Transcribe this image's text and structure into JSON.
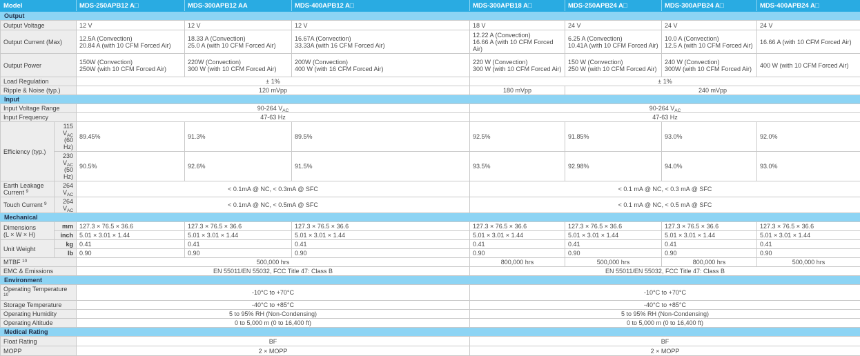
{
  "colors": {
    "header_bg": "#29ABE2",
    "section_bg": "#8DD4F4",
    "label_bg": "#EDEDED",
    "border": "#C9C9C9",
    "header_text": "#FFFFFF",
    "body_text": "#4A4A4A"
  },
  "table": {
    "columns": {
      "label": "Model",
      "models": [
        "MDS-250APB12 A□",
        "MDS-300APB12 AA",
        "MDS-400APB12 A□",
        "MDS-300APB18 A□",
        "MDS-250APB24 A□",
        "MDS-300APB24 A□",
        "MDS-400APB24 A□"
      ]
    },
    "rows": [
      {
        "kind": "section",
        "label": "Output"
      },
      {
        "kind": "row",
        "h": "h14",
        "label": "Output Voltage",
        "cells": [
          {
            "t": "12 V"
          },
          {
            "t": "12 V"
          },
          {
            "t": "12 V"
          },
          {
            "t": "18 V"
          },
          {
            "t": "24 V"
          },
          {
            "t": "24 V"
          },
          {
            "t": "24 V"
          }
        ]
      },
      {
        "kind": "row",
        "h": "h34",
        "label": "Output Current (Max)",
        "cells": [
          {
            "t": "12.5A (Convection)\n20.84 A (with 10 CFM Forced Air)"
          },
          {
            "t": "18.33 A (Convection)\n25.0 A (with 10 CFM Forced Air)"
          },
          {
            "t": "16.67A (Convection)\n33.33A (with 16 CFM Forced Air)"
          },
          {
            "t": "12.22 A (Convection)\n16.66 A (with 10 CFM Forced Air)"
          },
          {
            "t": "6.25 A (Convection)\n10.41A (with 10 CFM Forced Air)"
          },
          {
            "t": "10.0 A (Convection)\n12.5 A (with 10 CFM Forced Air)"
          },
          {
            "t": "16.66 A (with 10 CFM Forced Air)"
          }
        ]
      },
      {
        "kind": "row",
        "h": "h34",
        "label": "Output Power",
        "cells": [
          {
            "t": "150W (Convection)\n250W (with 10 CFM Forced Air)"
          },
          {
            "t": "220W (Convection)\n300 W (with 10 CFM Forced Air)"
          },
          {
            "t": "200W (Convection)\n400 W (with 16 CFM Forced Air)"
          },
          {
            "t": "220 W (Convection)\n300 W (with 10 CFM Forced Air)"
          },
          {
            "t": "150 W (Convection)\n250 W (with 10 CFM Forced Air)"
          },
          {
            "t": "240 W (Convection)\n300W (with 10 CFM Forced Air)"
          },
          {
            "t": "400 W (with 10 CFM Forced Air)"
          }
        ]
      },
      {
        "kind": "row",
        "h": "h13",
        "label": "Load Regulation",
        "cells": [
          {
            "t": "± 1%",
            "s": 3,
            "c": true
          },
          {
            "t": "± 1%",
            "s": 4,
            "c": true
          }
        ]
      },
      {
        "kind": "row",
        "h": "h13",
        "label": "Ripple & Noise (typ.)",
        "cells": [
          {
            "t": "120 mVpp",
            "s": 3,
            "c": true
          },
          {
            "t": "180 mVpp",
            "c": true
          },
          {
            "t": "240 mVpp",
            "s": 3,
            "c": true
          }
        ]
      },
      {
        "kind": "section",
        "label": "Input"
      },
      {
        "kind": "row",
        "h": "h13",
        "label": "Input Voltage Range",
        "cells": [
          {
            "t": "90-264 V_{AC}",
            "s": 3,
            "c": true
          },
          {
            "t": "90-264 V_{AC}",
            "s": 4,
            "c": true
          }
        ]
      },
      {
        "kind": "row",
        "h": "h13",
        "label": "Input Frequency",
        "cells": [
          {
            "t": "47-63 Hz",
            "s": 3,
            "c": true
          },
          {
            "t": "47-63 Hz",
            "s": 4,
            "c": true
          }
        ]
      },
      {
        "kind": "group",
        "label": "Efficiency (typ.)",
        "rows": [
          {
            "h": "h21",
            "sub": "115 V_{AC}\n(60 Hz)",
            "cells": [
              {
                "t": "89.45%"
              },
              {
                "t": "91.3%"
              },
              {
                "t": "89.5%"
              },
              {
                "t": "92.5%"
              },
              {
                "t": "91.85%"
              },
              {
                "t": "93.0%"
              },
              {
                "t": "92.0%"
              }
            ]
          },
          {
            "h": "h21",
            "sub": "230 V_{AC}\n(50 Hz)",
            "cells": [
              {
                "t": "90.5%"
              },
              {
                "t": "92.6%"
              },
              {
                "t": "91.5%"
              },
              {
                "t": "93.5%"
              },
              {
                "t": "92.98%"
              },
              {
                "t": "94.0%"
              },
              {
                "t": "93.0%"
              }
            ]
          }
        ]
      },
      {
        "kind": "row",
        "h": "h21",
        "label": "Earth Leakage Current ^{9}",
        "sub": "264 V_{AC}",
        "cells": [
          {
            "t": "< 0.1mA @ NC, < 0.3mA @ SFC",
            "s": 3,
            "c": true
          },
          {
            "t": "< 0.1 mA @ NC, < 0.3 mA @ SFC",
            "s": 4,
            "c": true
          }
        ]
      },
      {
        "kind": "row",
        "h": "h15",
        "label": "Touch Current ^{9}",
        "sub": "264 V_{AC}",
        "cells": [
          {
            "t": "< 0.1mA @ NC, < 0.5mA @ SFC",
            "s": 3,
            "c": true
          },
          {
            "t": "< 0.1 mA @ NC, < 0.5 mA @ SFC",
            "s": 4,
            "c": true
          }
        ]
      },
      {
        "kind": "section",
        "label": "Mechanical"
      },
      {
        "kind": "group",
        "label": "Dimensions\n(L × W × H)",
        "rows": [
          {
            "h": "h12",
            "sub": "mm",
            "b": true,
            "cells": [
              {
                "t": "127.3 × 76.5 × 36.6"
              },
              {
                "t": "127.3 × 76.5 × 36.6"
              },
              {
                "t": "127.3 × 76.5 × 36.6"
              },
              {
                "t": "127.3 × 76.5 × 36.6"
              },
              {
                "t": "127.3 × 76.5 × 36.6"
              },
              {
                "t": "127.3 × 76.5 × 36.6"
              },
              {
                "t": "127.3 × 76.5 × 36.6"
              }
            ]
          },
          {
            "h": "h12",
            "sub": "inch",
            "b": true,
            "cells": [
              {
                "t": "5.01 × 3.01 × 1.44"
              },
              {
                "t": "5.01 × 3.01 × 1.44"
              },
              {
                "t": "5.01 × 3.01 × 1.44"
              },
              {
                "t": "5.01 × 3.01 × 1.44"
              },
              {
                "t": "5.01 × 3.01 × 1.44"
              },
              {
                "t": "5.01 × 3.01 × 1.44"
              },
              {
                "t": "5.01 × 3.01 × 1.44"
              }
            ]
          }
        ]
      },
      {
        "kind": "group",
        "label": "Unit Weight",
        "rows": [
          {
            "h": "h12",
            "sub": "kg",
            "b": true,
            "cells": [
              {
                "t": "0.41"
              },
              {
                "t": "0.41"
              },
              {
                "t": "0.41"
              },
              {
                "t": "0.41"
              },
              {
                "t": "0.41"
              },
              {
                "t": "0.41"
              },
              {
                "t": "0.41"
              }
            ]
          },
          {
            "h": "h12",
            "sub": "lb",
            "b": true,
            "cells": [
              {
                "t": "0.90"
              },
              {
                "t": "0.90"
              },
              {
                "t": "0.90"
              },
              {
                "t": "0.90"
              },
              {
                "t": "0.90"
              },
              {
                "t": "0.90"
              },
              {
                "t": "0.90"
              }
            ]
          }
        ]
      },
      {
        "kind": "row",
        "h": "h12",
        "label": "MTBF ^{10}",
        "cells": [
          {
            "t": "500,000 hrs",
            "s": 3,
            "c": true
          },
          {
            "t": "800,000 hrs",
            "c": true
          },
          {
            "t": "500,000 hrs",
            "c": true
          },
          {
            "t": "800,000 hrs",
            "c": true
          },
          {
            "t": "500,000 hrs",
            "c": true
          }
        ]
      },
      {
        "kind": "row",
        "h": "h13",
        "label": "EMC & Emissions",
        "cells": [
          {
            "t": "EN 55011/EN 55032, FCC Title 47: Class B",
            "s": 3,
            "c": true
          },
          {
            "t": "EN 55011/EN 55032, FCC Title 47: Class B",
            "s": 4,
            "c": true
          }
        ]
      },
      {
        "kind": "section",
        "label": "Environment"
      },
      {
        "kind": "row",
        "h": "h13",
        "label": "Operating Temperature ^{10}",
        "cells": [
          {
            "t": "-10°C to +70°C",
            "s": 3,
            "c": true
          },
          {
            "t": "-10°C to +70°C",
            "s": 4,
            "c": true
          }
        ]
      },
      {
        "kind": "row",
        "h": "h13",
        "label": "Storage Temperature",
        "cells": [
          {
            "t": "-40°C to +85°C",
            "s": 3,
            "c": true
          },
          {
            "t": "-40°C to +85°C",
            "s": 4,
            "c": true
          }
        ]
      },
      {
        "kind": "row",
        "h": "h13",
        "label": "Operating Humidity",
        "cells": [
          {
            "t": "5 to 95% RH (Non-Condensing)",
            "s": 3,
            "c": true
          },
          {
            "t": "5 to 95% RH (Non-Condensing)",
            "s": 4,
            "c": true
          }
        ]
      },
      {
        "kind": "row",
        "h": "h13",
        "label": "Operating Altitude",
        "cells": [
          {
            "t": "0 to 5,000 m (0 to 16,400 ft)",
            "s": 3,
            "c": true
          },
          {
            "t": "0 to 5,000 m (0 to 16,400 ft)",
            "s": 4,
            "c": true
          }
        ]
      },
      {
        "kind": "section",
        "label": "Medical Rating"
      },
      {
        "kind": "row",
        "h": "h14",
        "label": "Float Rating",
        "cells": [
          {
            "t": "BF",
            "s": 3,
            "c": true
          },
          {
            "t": "BF",
            "s": 4,
            "c": true
          }
        ]
      },
      {
        "kind": "row",
        "h": "h14",
        "label": "MOPP",
        "cells": [
          {
            "t": "2 × MOPP",
            "s": 3,
            "c": true
          },
          {
            "t": "2 × MOPP",
            "s": 4,
            "c": true
          }
        ]
      }
    ]
  }
}
